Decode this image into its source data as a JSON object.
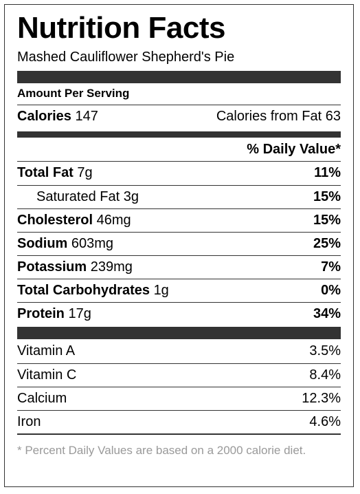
{
  "label": {
    "title": "Nutrition Facts",
    "recipe": "Mashed Cauliflower Shepherd's Pie",
    "amount_per_serving": "Amount Per Serving",
    "calories_label": "Calories",
    "calories_value": "147",
    "calories_from_fat": "Calories from Fat 63",
    "daily_value_header": "% Daily Value*",
    "nutrients": [
      {
        "name": "Total Fat",
        "amount": "7g",
        "dv": "11%"
      },
      {
        "name": "Saturated Fat",
        "amount": "3g",
        "dv": "15%"
      },
      {
        "name": "Cholesterol",
        "amount": "46mg",
        "dv": "15%"
      },
      {
        "name": "Sodium",
        "amount": "603mg",
        "dv": "25%"
      },
      {
        "name": "Potassium",
        "amount": "239mg",
        "dv": "7%"
      },
      {
        "name": "Total Carbohydrates",
        "amount": "1g",
        "dv": "0%"
      },
      {
        "name": "Protein",
        "amount": "17g",
        "dv": "34%"
      }
    ],
    "vitamins": [
      {
        "name": "Vitamin A",
        "dv": "3.5%"
      },
      {
        "name": "Vitamin C",
        "dv": "8.4%"
      },
      {
        "name": "Calcium",
        "dv": "12.3%"
      },
      {
        "name": "Iron",
        "dv": "4.6%"
      }
    ],
    "footnote": "* Percent Daily Values are based on a 2000 calorie diet."
  }
}
